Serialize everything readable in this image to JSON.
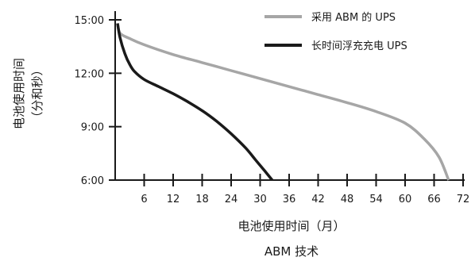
{
  "chart_data": {
    "type": "line",
    "title": "",
    "xlabel": "电池使用时间（月）",
    "ylabel_line1": "电池使用时间",
    "ylabel_line2": "（分和秒）",
    "caption": "ABM 技术",
    "x_ticks": [
      6,
      12,
      18,
      24,
      30,
      36,
      42,
      48,
      54,
      60,
      66,
      72
    ],
    "x_tick_labels": [
      "6",
      "12",
      "18",
      "24",
      "30",
      "36",
      "42",
      "48",
      "54",
      "60",
      "66",
      "72"
    ],
    "xlim": [
      0,
      72
    ],
    "y_ticks": [
      6,
      9,
      12,
      15
    ],
    "y_tick_labels": [
      "6:00",
      "9:00",
      "12:00",
      "15:00"
    ],
    "ylim": [
      6,
      15.5
    ],
    "legend_position": "top-right",
    "grid": false,
    "series": [
      {
        "name": "采用 ABM 的 UPS",
        "color": "#a6a6a6",
        "points": [
          [
            0.5,
            14.8
          ],
          [
            1,
            14.25
          ],
          [
            3,
            13.95
          ],
          [
            6,
            13.6
          ],
          [
            12,
            13.05
          ],
          [
            18,
            12.6
          ],
          [
            24,
            12.15
          ],
          [
            30,
            11.7
          ],
          [
            36,
            11.25
          ],
          [
            42,
            10.8
          ],
          [
            48,
            10.35
          ],
          [
            54,
            9.85
          ],
          [
            60,
            9.2
          ],
          [
            64,
            8.3
          ],
          [
            67,
            7.3
          ],
          [
            69,
            6.0
          ]
        ]
      },
      {
        "name": "长时间浮充充电 UPS",
        "color": "#1a1a1a",
        "points": [
          [
            0.5,
            14.8
          ],
          [
            1,
            14.0
          ],
          [
            2,
            13.1
          ],
          [
            3,
            12.5
          ],
          [
            4,
            12.1
          ],
          [
            6,
            11.65
          ],
          [
            9,
            11.25
          ],
          [
            12,
            10.85
          ],
          [
            15,
            10.4
          ],
          [
            18,
            9.9
          ],
          [
            21,
            9.3
          ],
          [
            24,
            8.6
          ],
          [
            27,
            7.8
          ],
          [
            29,
            7.15
          ],
          [
            31,
            6.5
          ],
          [
            32.5,
            6.0
          ]
        ]
      }
    ]
  }
}
